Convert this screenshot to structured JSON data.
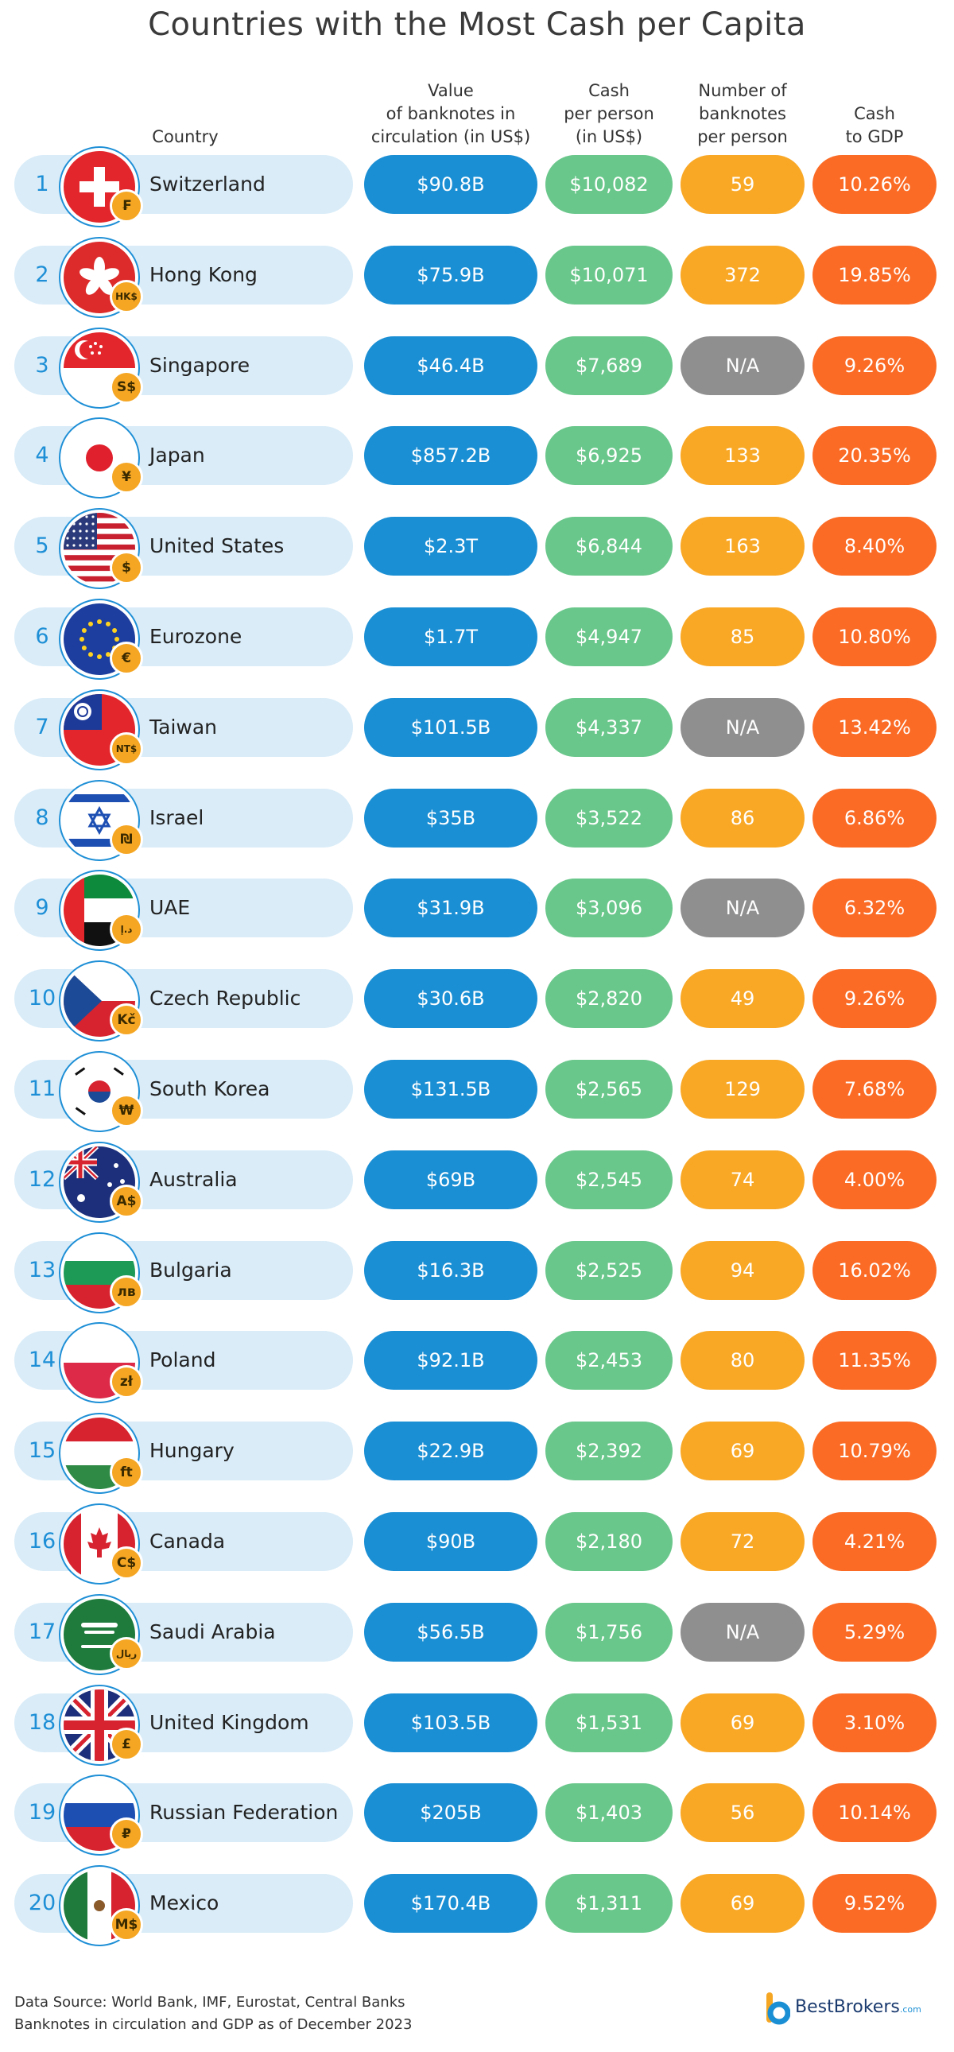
{
  "title": "Countries with the Most Cash per Capita",
  "headers": {
    "country": "Country",
    "value": "Value\nof banknotes in\ncirculation (in US$)",
    "cash": "Cash\nper person\n(in US$)",
    "notes": "Number of\nbanknotes\nper person",
    "gdp": "Cash\nto GDP"
  },
  "chart_data": {
    "type": "table",
    "columns": [
      "Country",
      "Value of banknotes in circulation (in US$)",
      "Cash per person (in US$)",
      "Number of banknotes per person",
      "Cash to GDP"
    ],
    "rows": [
      {
        "rank": "1",
        "country": "Switzerland",
        "currency": "₣",
        "flag": "switzerland",
        "value": "$90.8B",
        "cash": "$10,082",
        "notes": "59",
        "gdp": "10.26%"
      },
      {
        "rank": "2",
        "country": "Hong Kong",
        "currency": "HK$",
        "flag": "hongkong",
        "value": "$75.9B",
        "cash": "$10,071",
        "notes": "372",
        "gdp": "19.85%"
      },
      {
        "rank": "3",
        "country": "Singapore",
        "currency": "S$",
        "flag": "singapore",
        "value": "$46.4B",
        "cash": "$7,689",
        "notes": "N/A",
        "gdp": "9.26%"
      },
      {
        "rank": "4",
        "country": "Japan",
        "currency": "¥",
        "flag": "japan",
        "value": "$857.2B",
        "cash": "$6,925",
        "notes": "133",
        "gdp": "20.35%"
      },
      {
        "rank": "5",
        "country": "United States",
        "currency": "$",
        "flag": "usa",
        "value": "$2.3T",
        "cash": "$6,844",
        "notes": "163",
        "gdp": "8.40%"
      },
      {
        "rank": "6",
        "country": "Eurozone",
        "currency": "€",
        "flag": "eu",
        "value": "$1.7T",
        "cash": "$4,947",
        "notes": "85",
        "gdp": "10.80%"
      },
      {
        "rank": "7",
        "country": "Taiwan",
        "currency": "NT$",
        "flag": "taiwan",
        "value": "$101.5B",
        "cash": "$4,337",
        "notes": "N/A",
        "gdp": "13.42%"
      },
      {
        "rank": "8",
        "country": "Israel",
        "currency": "₪",
        "flag": "israel",
        "value": "$35B",
        "cash": "$3,522",
        "notes": "86",
        "gdp": "6.86%"
      },
      {
        "rank": "9",
        "country": "UAE",
        "currency": "د.إ",
        "flag": "uae",
        "value": "$31.9B",
        "cash": "$3,096",
        "notes": "N/A",
        "gdp": "6.32%"
      },
      {
        "rank": "10",
        "country": "Czech Republic",
        "currency": "Kč",
        "flag": "czech",
        "value": "$30.6B",
        "cash": "$2,820",
        "notes": "49",
        "gdp": "9.26%"
      },
      {
        "rank": "11",
        "country": "South Korea",
        "currency": "₩",
        "flag": "korea",
        "value": "$131.5B",
        "cash": "$2,565",
        "notes": "129",
        "gdp": "7.68%"
      },
      {
        "rank": "12",
        "country": "Australia",
        "currency": "A$",
        "flag": "australia",
        "value": "$69B",
        "cash": "$2,545",
        "notes": "74",
        "gdp": "4.00%"
      },
      {
        "rank": "13",
        "country": "Bulgaria",
        "currency": "лв",
        "flag": "bulgaria",
        "value": "$16.3B",
        "cash": "$2,525",
        "notes": "94",
        "gdp": "16.02%"
      },
      {
        "rank": "14",
        "country": "Poland",
        "currency": "zł",
        "flag": "poland",
        "value": "$92.1B",
        "cash": "$2,453",
        "notes": "80",
        "gdp": "11.35%"
      },
      {
        "rank": "15",
        "country": "Hungary",
        "currency": "ft",
        "flag": "hungary",
        "value": "$22.9B",
        "cash": "$2,392",
        "notes": "69",
        "gdp": "10.79%"
      },
      {
        "rank": "16",
        "country": "Canada",
        "currency": "C$",
        "flag": "canada",
        "value": "$90B",
        "cash": "$2,180",
        "notes": "72",
        "gdp": "4.21%"
      },
      {
        "rank": "17",
        "country": "Saudi Arabia",
        "currency": "ريال",
        "flag": "saudi",
        "value": "$56.5B",
        "cash": "$1,756",
        "notes": "N/A",
        "gdp": "5.29%"
      },
      {
        "rank": "18",
        "country": "United Kingdom",
        "currency": "£",
        "flag": "uk",
        "value": "$103.5B",
        "cash": "$1,531",
        "notes": "69",
        "gdp": "3.10%"
      },
      {
        "rank": "19",
        "country": "Russian Federation",
        "currency": "₽",
        "flag": "russia",
        "value": "$205B",
        "cash": "$1,403",
        "notes": "56",
        "gdp": "10.14%"
      },
      {
        "rank": "20",
        "country": "Mexico",
        "currency": "M$",
        "flag": "mexico",
        "value": "$170.4B",
        "cash": "$1,311",
        "notes": "69",
        "gdp": "9.52%"
      }
    ]
  },
  "footer": {
    "source": "Data Source: World Bank, IMF, Eurostat, Central Banks",
    "note": "Banknotes in circulation and GDP as of December 2023"
  },
  "brand": {
    "name": "BestBrokers",
    "suffix": ".com"
  },
  "colors": {
    "value_pill": "#1b8fd4",
    "cash_pill": "#6ac78b",
    "notes_pill": "#f9a826",
    "na_pill": "#8f8f8f",
    "gdp_pill": "#fb6b25",
    "row_band": "#d9ecf8",
    "currency_badge": "#f5a623"
  }
}
